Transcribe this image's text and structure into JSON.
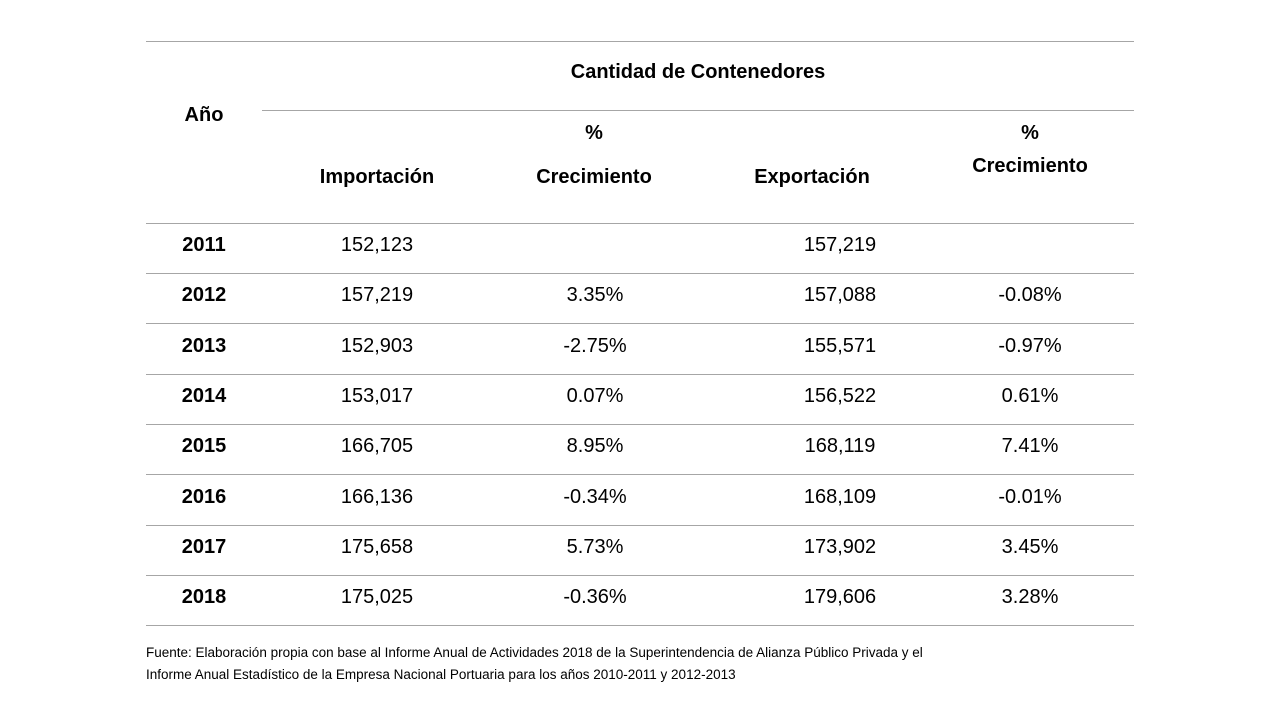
{
  "table": {
    "header": {
      "year_label": "Año",
      "group_label": "Cantidad de Contenedores",
      "importacion_label": "Importación",
      "crec_imp_label_top": "%",
      "crec_imp_label_bottom": "Crecimiento",
      "exportacion_label": "Exportación",
      "crec_exp_label_top": "%",
      "crec_exp_label_bottom": "Crecimiento"
    },
    "rows": [
      {
        "year": "2011",
        "importacion": "152,123",
        "crec_imp": "",
        "exportacion": "157,219",
        "crec_exp": ""
      },
      {
        "year": "2012",
        "importacion": "157,219",
        "crec_imp": "3.35%",
        "exportacion": "157,088",
        "crec_exp": "-0.08%"
      },
      {
        "year": "2013",
        "importacion": "152,903",
        "crec_imp": "-2.75%",
        "exportacion": "155,571",
        "crec_exp": "-0.97%"
      },
      {
        "year": "2014",
        "importacion": "153,017",
        "crec_imp": "0.07%",
        "exportacion": "156,522",
        "crec_exp": "0.61%"
      },
      {
        "year": "2015",
        "importacion": "166,705",
        "crec_imp": "8.95%",
        "exportacion": "168,119",
        "crec_exp": "7.41%"
      },
      {
        "year": "2016",
        "importacion": "166,136",
        "crec_imp": "-0.34%",
        "exportacion": "168,109",
        "crec_exp": "-0.01%"
      },
      {
        "year": "2017",
        "importacion": "175,658",
        "crec_imp": "5.73%",
        "exportacion": "173,902",
        "crec_exp": "3.45%"
      },
      {
        "year": "2018",
        "importacion": "175,025",
        "crec_imp": "-0.36%",
        "exportacion": "179,606",
        "crec_exp": "3.28%"
      }
    ]
  },
  "source": {
    "line1": "Fuente: Elaboración propia con base al Informe Anual de Actividades 2018 de la Superintendencia de Alianza Público Privada y el",
    "line2": "Informe Anual Estadístico de la Empresa Nacional Portuaria para los años 2010-2011 y 2012-2013"
  }
}
